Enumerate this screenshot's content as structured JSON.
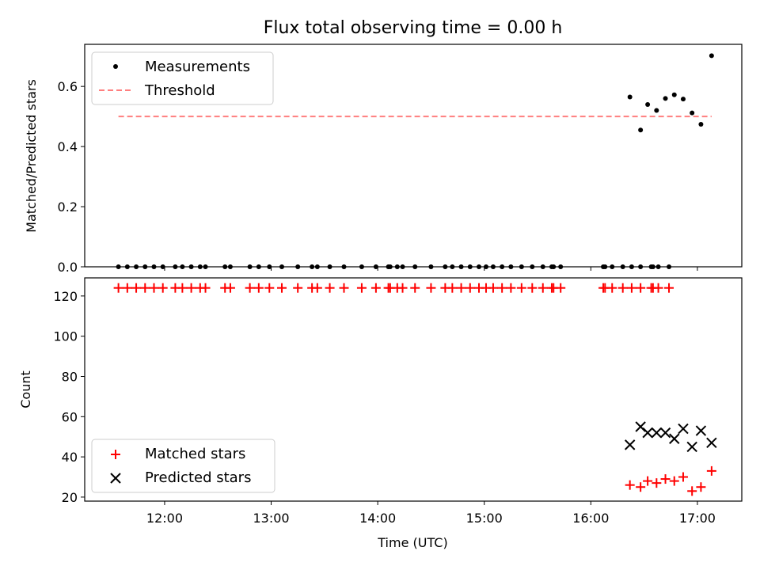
{
  "chart_data": [
    {
      "type": "scatter",
      "title": "Flux total observing time = 0.00 h",
      "xlabel": "",
      "ylabel": "Matched/Predicted stars",
      "ylim": [
        0,
        0.74
      ],
      "yticks": [
        0.0,
        0.2,
        0.4,
        0.6
      ],
      "ytick_labels": [
        "0.0",
        "0.2",
        "0.4",
        "0.6"
      ],
      "xlim": [
        "11:15",
        "17:25"
      ],
      "legend_position": "upper-left",
      "series": [
        {
          "name": "Measurements",
          "marker": "dot",
          "color": "#000000",
          "points": [
            {
              "x": "11:34",
              "y": 0.0
            },
            {
              "x": "11:39",
              "y": 0.0
            },
            {
              "x": "11:44",
              "y": 0.0
            },
            {
              "x": "11:49",
              "y": 0.0
            },
            {
              "x": "11:54",
              "y": 0.0
            },
            {
              "x": "11:59",
              "y": 0.0
            },
            {
              "x": "12:06",
              "y": 0.0
            },
            {
              "x": "12:10",
              "y": 0.0
            },
            {
              "x": "12:15",
              "y": 0.0
            },
            {
              "x": "12:20",
              "y": 0.0
            },
            {
              "x": "12:23",
              "y": 0.0
            },
            {
              "x": "12:34",
              "y": 0.0
            },
            {
              "x": "12:37",
              "y": 0.0
            },
            {
              "x": "12:48",
              "y": 0.0
            },
            {
              "x": "12:53",
              "y": 0.0
            },
            {
              "x": "12:59",
              "y": 0.0
            },
            {
              "x": "13:06",
              "y": 0.0
            },
            {
              "x": "13:15",
              "y": 0.0
            },
            {
              "x": "13:23",
              "y": 0.0
            },
            {
              "x": "13:26",
              "y": 0.0
            },
            {
              "x": "13:33",
              "y": 0.0
            },
            {
              "x": "13:41",
              "y": 0.0
            },
            {
              "x": "13:51",
              "y": 0.0
            },
            {
              "x": "13:59",
              "y": 0.0
            },
            {
              "x": "14:06",
              "y": 0.0
            },
            {
              "x": "14:07",
              "y": 0.0
            },
            {
              "x": "14:11",
              "y": 0.0
            },
            {
              "x": "14:14",
              "y": 0.0
            },
            {
              "x": "14:21",
              "y": 0.0
            },
            {
              "x": "14:30",
              "y": 0.0
            },
            {
              "x": "14:38",
              "y": 0.0
            },
            {
              "x": "14:42",
              "y": 0.0
            },
            {
              "x": "14:47",
              "y": 0.0
            },
            {
              "x": "14:52",
              "y": 0.0
            },
            {
              "x": "14:57",
              "y": 0.0
            },
            {
              "x": "15:01",
              "y": 0.0
            },
            {
              "x": "15:05",
              "y": 0.0
            },
            {
              "x": "15:10",
              "y": 0.0
            },
            {
              "x": "15:15",
              "y": 0.0
            },
            {
              "x": "15:21",
              "y": 0.0
            },
            {
              "x": "15:27",
              "y": 0.0
            },
            {
              "x": "15:33",
              "y": 0.0
            },
            {
              "x": "15:38",
              "y": 0.0
            },
            {
              "x": "15:39",
              "y": 0.0
            },
            {
              "x": "15:43",
              "y": 0.0
            },
            {
              "x": "16:07",
              "y": 0.0
            },
            {
              "x": "16:08",
              "y": 0.0
            },
            {
              "x": "16:12",
              "y": 0.0
            },
            {
              "x": "16:18",
              "y": 0.0
            },
            {
              "x": "16:23",
              "y": 0.0
            },
            {
              "x": "16:28",
              "y": 0.0
            },
            {
              "x": "16:34",
              "y": 0.0
            },
            {
              "x": "16:35",
              "y": 0.0
            },
            {
              "x": "16:38",
              "y": 0.0
            },
            {
              "x": "16:44",
              "y": 0.0
            },
            {
              "x": "16:22",
              "y": 0.565
            },
            {
              "x": "16:28",
              "y": 0.455
            },
            {
              "x": "16:32",
              "y": 0.54
            },
            {
              "x": "16:37",
              "y": 0.52
            },
            {
              "x": "16:42",
              "y": 0.56
            },
            {
              "x": "16:47",
              "y": 0.572
            },
            {
              "x": "16:52",
              "y": 0.558
            },
            {
              "x": "16:57",
              "y": 0.512
            },
            {
              "x": "17:02",
              "y": 0.474
            },
            {
              "x": "17:08",
              "y": 0.702
            }
          ]
        },
        {
          "name": "Threshold",
          "marker": "dashed-line",
          "color": "#ff7f7f",
          "points": [
            {
              "x": "11:34",
              "y": 0.5
            },
            {
              "x": "17:08",
              "y": 0.5
            }
          ]
        }
      ]
    },
    {
      "type": "scatter",
      "title": "",
      "xlabel": "Time (UTC)",
      "ylabel": "Count",
      "ylim": [
        18,
        129
      ],
      "yticks": [
        20,
        40,
        60,
        80,
        100,
        120
      ],
      "ytick_labels": [
        "20",
        "40",
        "60",
        "80",
        "100",
        "120"
      ],
      "xlim": [
        "11:15",
        "17:25"
      ],
      "xticks": [
        "12:00",
        "13:00",
        "14:00",
        "15:00",
        "16:00",
        "17:00"
      ],
      "xtick_labels": [
        "12:00",
        "13:00",
        "14:00",
        "15:00",
        "16:00",
        "17:00"
      ],
      "legend_position": "lower-left",
      "series": [
        {
          "name": "Matched stars",
          "marker": "plus",
          "color": "#ff0000",
          "points": [
            {
              "x": "11:34",
              "y": 124
            },
            {
              "x": "11:39",
              "y": 124
            },
            {
              "x": "11:44",
              "y": 124
            },
            {
              "x": "11:49",
              "y": 124
            },
            {
              "x": "11:54",
              "y": 124
            },
            {
              "x": "11:59",
              "y": 124
            },
            {
              "x": "12:06",
              "y": 124
            },
            {
              "x": "12:10",
              "y": 124
            },
            {
              "x": "12:15",
              "y": 124
            },
            {
              "x": "12:20",
              "y": 124
            },
            {
              "x": "12:23",
              "y": 124
            },
            {
              "x": "12:34",
              "y": 124
            },
            {
              "x": "12:37",
              "y": 124
            },
            {
              "x": "12:48",
              "y": 124
            },
            {
              "x": "12:53",
              "y": 124
            },
            {
              "x": "12:59",
              "y": 124
            },
            {
              "x": "13:06",
              "y": 124
            },
            {
              "x": "13:15",
              "y": 124
            },
            {
              "x": "13:23",
              "y": 124
            },
            {
              "x": "13:26",
              "y": 124
            },
            {
              "x": "13:33",
              "y": 124
            },
            {
              "x": "13:41",
              "y": 124
            },
            {
              "x": "13:51",
              "y": 124
            },
            {
              "x": "13:59",
              "y": 124
            },
            {
              "x": "14:06",
              "y": 124
            },
            {
              "x": "14:07",
              "y": 124
            },
            {
              "x": "14:11",
              "y": 124
            },
            {
              "x": "14:14",
              "y": 124
            },
            {
              "x": "14:21",
              "y": 124
            },
            {
              "x": "14:30",
              "y": 124
            },
            {
              "x": "14:38",
              "y": 124
            },
            {
              "x": "14:42",
              "y": 124
            },
            {
              "x": "14:47",
              "y": 124
            },
            {
              "x": "14:52",
              "y": 124
            },
            {
              "x": "14:57",
              "y": 124
            },
            {
              "x": "15:01",
              "y": 124
            },
            {
              "x": "15:05",
              "y": 124
            },
            {
              "x": "15:10",
              "y": 124
            },
            {
              "x": "15:15",
              "y": 124
            },
            {
              "x": "15:21",
              "y": 124
            },
            {
              "x": "15:27",
              "y": 124
            },
            {
              "x": "15:33",
              "y": 124
            },
            {
              "x": "15:38",
              "y": 124
            },
            {
              "x": "15:39",
              "y": 124
            },
            {
              "x": "15:43",
              "y": 124
            },
            {
              "x": "16:07",
              "y": 124
            },
            {
              "x": "16:08",
              "y": 124
            },
            {
              "x": "16:12",
              "y": 124
            },
            {
              "x": "16:18",
              "y": 124
            },
            {
              "x": "16:23",
              "y": 124
            },
            {
              "x": "16:28",
              "y": 124
            },
            {
              "x": "16:34",
              "y": 124
            },
            {
              "x": "16:35",
              "y": 124
            },
            {
              "x": "16:38",
              "y": 124
            },
            {
              "x": "16:44",
              "y": 124
            },
            {
              "x": "16:22",
              "y": 26
            },
            {
              "x": "16:28",
              "y": 25
            },
            {
              "x": "16:32",
              "y": 28
            },
            {
              "x": "16:37",
              "y": 27
            },
            {
              "x": "16:42",
              "y": 29
            },
            {
              "x": "16:47",
              "y": 28
            },
            {
              "x": "16:52",
              "y": 30
            },
            {
              "x": "16:57",
              "y": 23
            },
            {
              "x": "17:02",
              "y": 25
            },
            {
              "x": "17:08",
              "y": 33
            }
          ]
        },
        {
          "name": "Predicted stars",
          "marker": "x",
          "color": "#000000",
          "points": [
            {
              "x": "16:22",
              "y": 46
            },
            {
              "x": "16:28",
              "y": 55
            },
            {
              "x": "16:32",
              "y": 52
            },
            {
              "x": "16:37",
              "y": 52
            },
            {
              "x": "16:42",
              "y": 52
            },
            {
              "x": "16:47",
              "y": 49
            },
            {
              "x": "16:52",
              "y": 54
            },
            {
              "x": "16:57",
              "y": 45
            },
            {
              "x": "17:02",
              "y": 53
            },
            {
              "x": "17:08",
              "y": 47
            }
          ]
        }
      ]
    }
  ]
}
